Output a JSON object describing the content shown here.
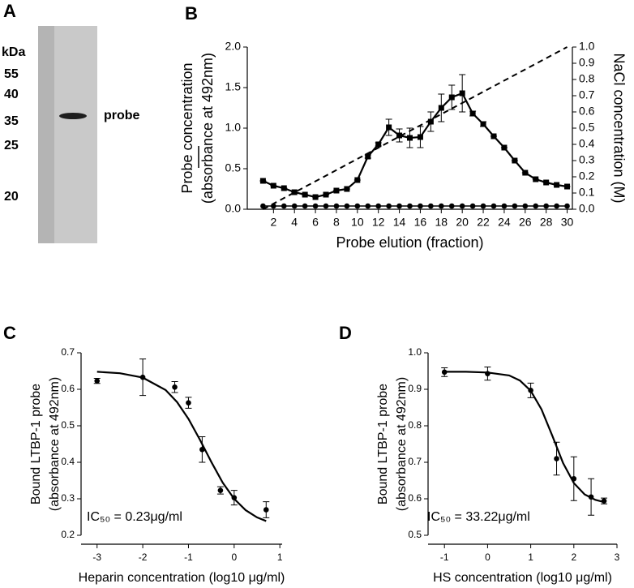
{
  "panel_a": {
    "label": "A",
    "unit": "kDa",
    "markers": [
      "55",
      "40",
      "35",
      "25",
      "20"
    ],
    "band_label": "probe"
  },
  "chart_data": [
    {
      "panel": "B",
      "type": "line",
      "x": [
        1,
        2,
        3,
        4,
        5,
        6,
        7,
        8,
        9,
        10,
        11,
        12,
        13,
        14,
        15,
        16,
        17,
        18,
        19,
        20,
        21,
        22,
        23,
        24,
        25,
        26,
        27,
        28,
        29,
        30
      ],
      "xlim": [
        -0.5,
        30.5
      ],
      "xticks": [
        2,
        4,
        6,
        8,
        10,
        12,
        14,
        16,
        18,
        20,
        22,
        24,
        26,
        28,
        30
      ],
      "ylim": [
        0,
        2
      ],
      "yticks": [
        {
          "value": 0,
          "label": "0.0"
        },
        0.5,
        {
          "value": 1,
          "label": "1.0"
        },
        1.5,
        {
          "value": 2,
          "label": "2.0"
        }
      ],
      "y2lim": [
        0,
        1
      ],
      "y2ticks": [
        {
          "value": 0,
          "label": "0.0"
        },
        0.1,
        0.2,
        0.3,
        0.4,
        0.5,
        0.6,
        0.7,
        0.8,
        0.9,
        {
          "value": 1,
          "label": "1.0"
        }
      ],
      "xlabel": "Probe elution (fraction)",
      "ylabel": [
        "Probe concentration",
        "(absorbance at 492nm)"
      ],
      "y2label": "NaCl concentration (M)",
      "series": [
        {
          "marker": "square",
          "line": true,
          "color": "#000000",
          "values": [
            0.35,
            0.29,
            0.26,
            0.21,
            0.18,
            0.15,
            0.18,
            0.23,
            0.25,
            0.36,
            0.65,
            0.8,
            1.01,
            0.91,
            0.88,
            0.89,
            1.08,
            1.25,
            1.38,
            1.43,
            1.18,
            1.05,
            0.9,
            0.76,
            0.6,
            0.45,
            0.37,
            0.33,
            0.3,
            0.28
          ],
          "errors": [
            0,
            0,
            0,
            0,
            0,
            0,
            0,
            0,
            0,
            0,
            0.02,
            0.02,
            0.1,
            0.08,
            0.12,
            0.13,
            0.12,
            0.17,
            0.15,
            0.23,
            0.03,
            0.03,
            0,
            0,
            0,
            0,
            0,
            0,
            0,
            0
          ]
        },
        {
          "marker": "circle",
          "line": true,
          "color": "#000000",
          "values": [
            0.04,
            0.04,
            0.04,
            0.04,
            0.04,
            0.04,
            0.04,
            0.04,
            0.04,
            0.04,
            0.04,
            0.04,
            0.04,
            0.04,
            0.04,
            0.04,
            0.04,
            0.04,
            0.04,
            0.04,
            0.04,
            0.04,
            0.04,
            0.04,
            0.04,
            0.04,
            0.04,
            0.04,
            0.04,
            0.04
          ]
        },
        {
          "axis": "y2",
          "line": true,
          "dashed": true,
          "color": "#000000",
          "x": [
            1,
            30
          ],
          "values": [
            0,
            1
          ]
        }
      ]
    },
    {
      "panel": "C",
      "type": "scatter",
      "xlim": [
        -3.35,
        1.05
      ],
      "xticks": [
        -3,
        -2,
        -1,
        0,
        1
      ],
      "ylim": [
        0.2,
        0.7
      ],
      "yticks": [
        0.2,
        0.3,
        0.4,
        0.5,
        0.6,
        0.7
      ],
      "xlabel": "Heparin concentration (log10  μg/ml)",
      "ylabel": [
        "Bound LTBP-1 probe",
        "(absorbance at 492nm)"
      ],
      "annotation": "IC₅₀ = 0.23μg/ml",
      "series": [
        {
          "marker": "circle",
          "line": false,
          "color": "#000000",
          "x": [
            -3,
            -2,
            -1.3,
            -1,
            -0.7,
            -0.3,
            0,
            0.7
          ],
          "values": [
            0.623,
            0.633,
            0.606,
            0.563,
            0.435,
            0.323,
            0.303,
            0.27
          ],
          "errors": [
            0.007,
            0.05,
            0.015,
            0.015,
            0.035,
            0.01,
            0.02,
            0.022
          ]
        },
        {
          "line": true,
          "color": "#000000",
          "x": [
            -3,
            -2.5,
            -2,
            -1.5,
            -1.25,
            -1,
            -0.75,
            -0.5,
            -0.25,
            0,
            0.25,
            0.5,
            0.7
          ],
          "values": [
            0.648,
            0.644,
            0.632,
            0.598,
            0.565,
            0.519,
            0.462,
            0.401,
            0.344,
            0.3,
            0.269,
            0.249,
            0.239
          ]
        }
      ]
    },
    {
      "panel": "D",
      "type": "scatter",
      "xlim": [
        -1.38,
        3
      ],
      "xticks": [
        -1,
        0,
        1,
        2,
        3
      ],
      "ylim": [
        0.5,
        1
      ],
      "yticks": [
        0.5,
        0.6,
        0.7,
        0.8,
        0.9,
        {
          "value": 1,
          "label": "1.0"
        }
      ],
      "xlabel": "HS concentration (log10  μg/ml)",
      "ylabel": [
        "Bound LTBP-1 probe",
        "(absorbance at 492nm)"
      ],
      "annotation": "IC₅₀ = 33.22μg/ml",
      "series": [
        {
          "marker": "circle",
          "line": false,
          "color": "#000000",
          "x": [
            -1,
            0,
            1,
            1.6,
            2,
            2.4,
            2.7
          ],
          "values": [
            0.947,
            0.943,
            0.897,
            0.71,
            0.655,
            0.605,
            0.594
          ],
          "errors": [
            0.012,
            0.018,
            0.02,
            0.045,
            0.06,
            0.05,
            0.008
          ]
        },
        {
          "line": true,
          "color": "#000000",
          "x": [
            -1,
            -0.5,
            0,
            0.5,
            0.75,
            1,
            1.25,
            1.5,
            1.75,
            2,
            2.25,
            2.5,
            2.7
          ],
          "values": [
            0.948,
            0.948,
            0.946,
            0.938,
            0.924,
            0.896,
            0.845,
            0.773,
            0.698,
            0.643,
            0.612,
            0.597,
            0.591
          ]
        }
      ]
    }
  ]
}
